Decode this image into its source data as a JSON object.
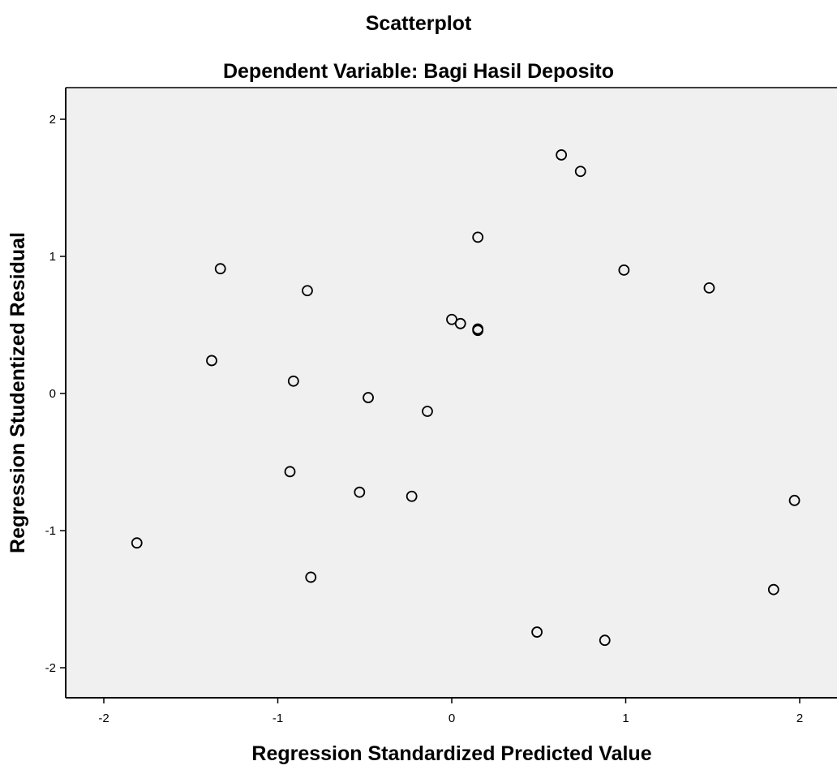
{
  "chart_data": {
    "type": "scatter",
    "title": "Scatterplot",
    "subtitle": "Dependent Variable: Bagi Hasil Deposito",
    "xlabel": "Regression Standardized Predicted Value",
    "ylabel": "Regression Studentized Residual",
    "xlim": [
      -2.2,
      2.2
    ],
    "ylim": [
      -2.22,
      2.22
    ],
    "xticks": [
      -2,
      -1,
      0,
      1,
      2
    ],
    "yticks": [
      -2,
      -1,
      0,
      1,
      2
    ],
    "x_tick_labels": [
      "-2",
      "-1",
      "0",
      "1",
      "2"
    ],
    "y_tick_labels": [
      "-2",
      "-1",
      "0",
      "1",
      "2"
    ],
    "grid": false,
    "plot_background": "#f0f0f0",
    "marker_color": "#000000",
    "marker_style": "hollow-circle",
    "points": [
      {
        "x": 0.63,
        "y": 1.74
      },
      {
        "x": 0.74,
        "y": 1.62
      },
      {
        "x": 0.15,
        "y": 1.14
      },
      {
        "x": -1.33,
        "y": 0.91
      },
      {
        "x": 0.99,
        "y": 0.9
      },
      {
        "x": -0.83,
        "y": 0.75
      },
      {
        "x": 1.48,
        "y": 0.77
      },
      {
        "x": 0.0,
        "y": 0.54
      },
      {
        "x": 0.05,
        "y": 0.51
      },
      {
        "x": 0.15,
        "y": 0.47
      },
      {
        "x": 0.15,
        "y": 0.46
      },
      {
        "x": -1.38,
        "y": 0.24
      },
      {
        "x": -0.91,
        "y": 0.09
      },
      {
        "x": -0.48,
        "y": -0.03
      },
      {
        "x": -0.14,
        "y": -0.13
      },
      {
        "x": -0.93,
        "y": -0.57
      },
      {
        "x": -0.53,
        "y": -0.72
      },
      {
        "x": -0.23,
        "y": -0.75
      },
      {
        "x": 1.97,
        "y": -0.78
      },
      {
        "x": -1.81,
        "y": -1.09
      },
      {
        "x": -0.81,
        "y": -1.34
      },
      {
        "x": 1.85,
        "y": -1.43
      },
      {
        "x": 0.49,
        "y": -1.74
      },
      {
        "x": 0.88,
        "y": -1.8
      }
    ]
  }
}
